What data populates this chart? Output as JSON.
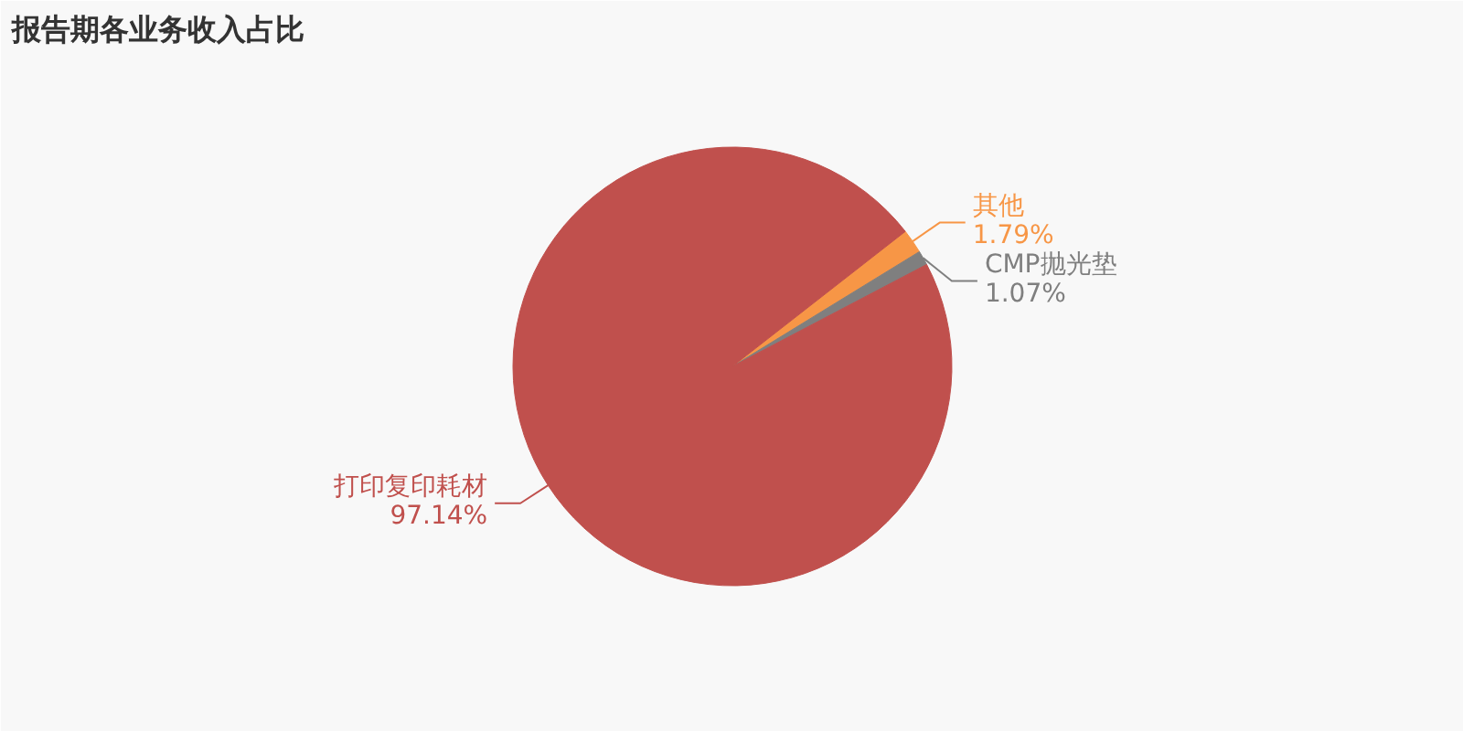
{
  "chart_data": {
    "type": "pie",
    "title": "报告期各业务收入占比",
    "categories": [
      "其他",
      "CMP抛光垫",
      "打印复印耗材"
    ],
    "values": [
      1.79,
      1.07,
      97.14
    ],
    "colors": [
      "#f79646",
      "#7f7f7f",
      "#c0504d"
    ],
    "value_labels": [
      "1.79%",
      "1.07%",
      "97.14%"
    ]
  }
}
